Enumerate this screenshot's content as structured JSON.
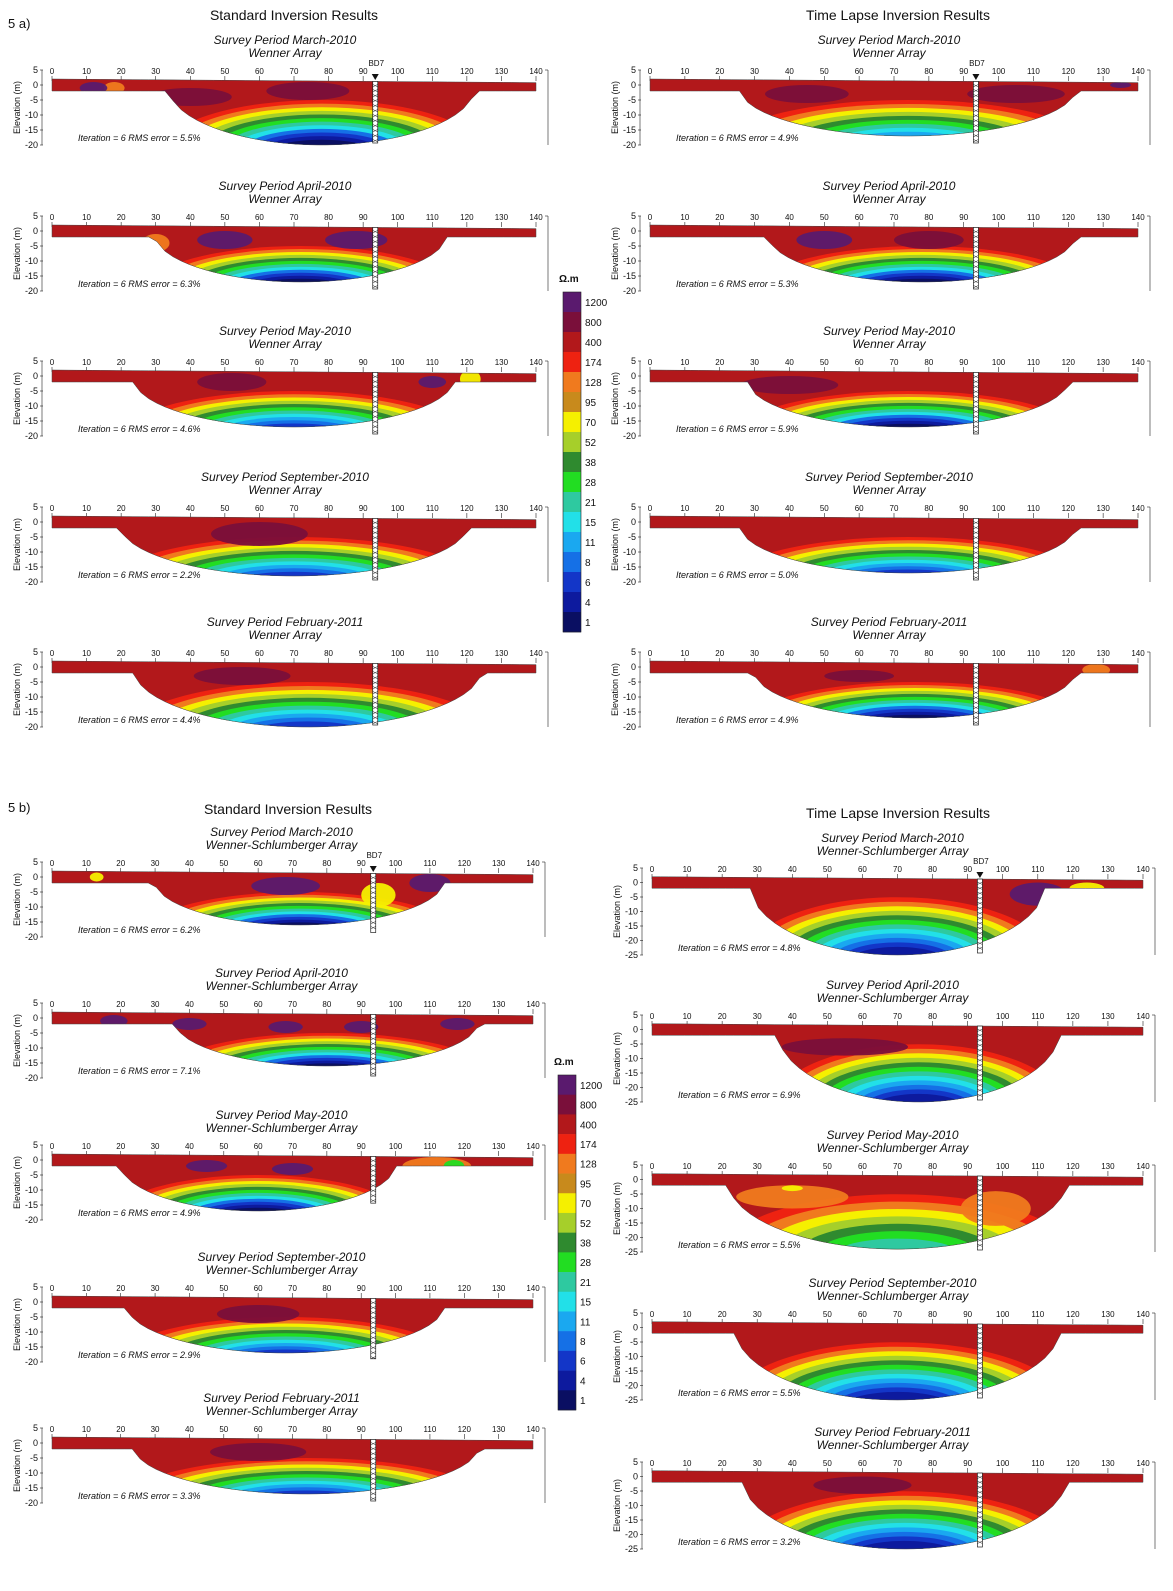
{
  "figure": {
    "sections": [
      {
        "label": "5 a)",
        "columns": [
          {
            "title": "Standard Inversion Results",
            "panels": [
              {
                "period": "Survey Period  March-2010",
                "array": "Wenner Array",
                "iteration": "Iteration = 6   RMS error = 5.5%",
                "borehole": "BD7"
              },
              {
                "period": "Survey Period  April-2010",
                "array": "Wenner Array",
                "iteration": "Iteration = 6   RMS error = 6.3%"
              },
              {
                "period": "Survey Period  May-2010",
                "array": "Wenner Array",
                "iteration": "Iteration = 6   RMS error = 4.6%"
              },
              {
                "period": "Survey Period  September-2010",
                "array": "Wenner Array",
                "iteration": "Iteration = 6   RMS error = 2.2%"
              },
              {
                "period": "Survey Period  February-2011",
                "array": "Wenner Array",
                "iteration": "Iteration = 6   RMS error = 4.4%"
              }
            ]
          },
          {
            "title": "Time Lapse Inversion Results",
            "panels": [
              {
                "period": "Survey Period  March-2010",
                "array": "Wenner Array",
                "iteration": "Iteration = 6   RMS error = 4.9%",
                "borehole": "BD7"
              },
              {
                "period": "Survey Period  April-2010",
                "array": "Wenner Array",
                "iteration": "Iteration = 6   RMS error = 5.3%"
              },
              {
                "period": "Survey Period  May-2010",
                "array": "Wenner Array",
                "iteration": "Iteration = 6   RMS error = 5.9%"
              },
              {
                "period": "Survey Period  September-2010",
                "array": "Wenner Array",
                "iteration": "Iteration = 6   RMS error = 5.0%"
              },
              {
                "period": "Survey Period  February-2011",
                "array": "Wenner Array",
                "iteration": "Iteration = 6   RMS error = 4.9%"
              }
            ]
          }
        ]
      },
      {
        "label": "5 b)",
        "columns": [
          {
            "title": "Standard Inversion Results",
            "panels": [
              {
                "period": "Survey Period  March-2010",
                "array": "Wenner-Schlumberger Array",
                "iteration": "Iteration = 6   RMS error = 6.2%",
                "borehole": "BD7"
              },
              {
                "period": "Survey Period  April-2010",
                "array": "Wenner-Schlumberger Array",
                "iteration": "Iteration = 6   RMS error = 7.1%"
              },
              {
                "period": "Survey Period  May-2010",
                "array": "Wenner-Schlumberger Array",
                "iteration": "Iteration = 6   RMS error = 4.9%"
              },
              {
                "period": "Survey Period  September-2010",
                "array": "Wenner-Schlumberger Array",
                "iteration": "Iteration = 6   RMS error = 2.9%"
              },
              {
                "period": "Survey Period  February-2011",
                "array": "Wenner-Schlumberger Array",
                "iteration": "Iteration = 6   RMS error = 3.3%"
              }
            ]
          },
          {
            "title": "Time Lapse Inversion Results",
            "panels": [
              {
                "period": "Survey Period  March-2010",
                "array": "Wenner-Schlumberger Array",
                "iteration": "Iteration = 6   RMS error = 4.8%",
                "borehole": "BD7"
              },
              {
                "period": "Survey Period  April-2010",
                "array": "Wenner-Schlumberger Array",
                "iteration": "Iteration = 6   RMS error = 6.9%"
              },
              {
                "period": "Survey Period  May-2010",
                "array": "Wenner-Schlumberger Array",
                "iteration": "Iteration = 6   RMS error = 5.5%"
              },
              {
                "period": "Survey Period  September-2010",
                "array": "Wenner-Schlumberger Array",
                "iteration": "Iteration = 6   RMS error = 5.5%"
              },
              {
                "period": "Survey Period  February-2011",
                "array": "Wenner-Schlumberger Array",
                "iteration": "Iteration = 6   RMS error = 3.2%"
              }
            ]
          }
        ]
      }
    ],
    "axis": {
      "y_label": "Elevation (m)",
      "x_ticks": [
        "0",
        "10",
        "20",
        "30",
        "40",
        "50",
        "60",
        "70",
        "80",
        "90",
        "100",
        "110",
        "120",
        "130",
        "140"
      ],
      "y_ticks_short": [
        "5",
        "0",
        "-5",
        "-10",
        "-15",
        "-20"
      ],
      "y_ticks_long": [
        "5",
        "0",
        "-5",
        "-10",
        "-15",
        "-20",
        "-25"
      ]
    },
    "color_scale": {
      "unit": "Ω.m",
      "values": [
        "1200",
        "800",
        "400",
        "174",
        "128",
        "95",
        "70",
        "52",
        "38",
        "28",
        "21",
        "15",
        "11",
        "8",
        "6",
        "4",
        "1"
      ],
      "colors": [
        "#5a1a6e",
        "#7a0f3a",
        "#b2181b",
        "#ee2211",
        "#f07a1e",
        "#c88a1c",
        "#f5f000",
        "#a6cf2a",
        "#2f8a2f",
        "#22dd22",
        "#2ec9a0",
        "#22e0e8",
        "#1aa8f0",
        "#1570e6",
        "#1336c8",
        "#0d1a9e",
        "#0a0f62"
      ]
    }
  }
}
